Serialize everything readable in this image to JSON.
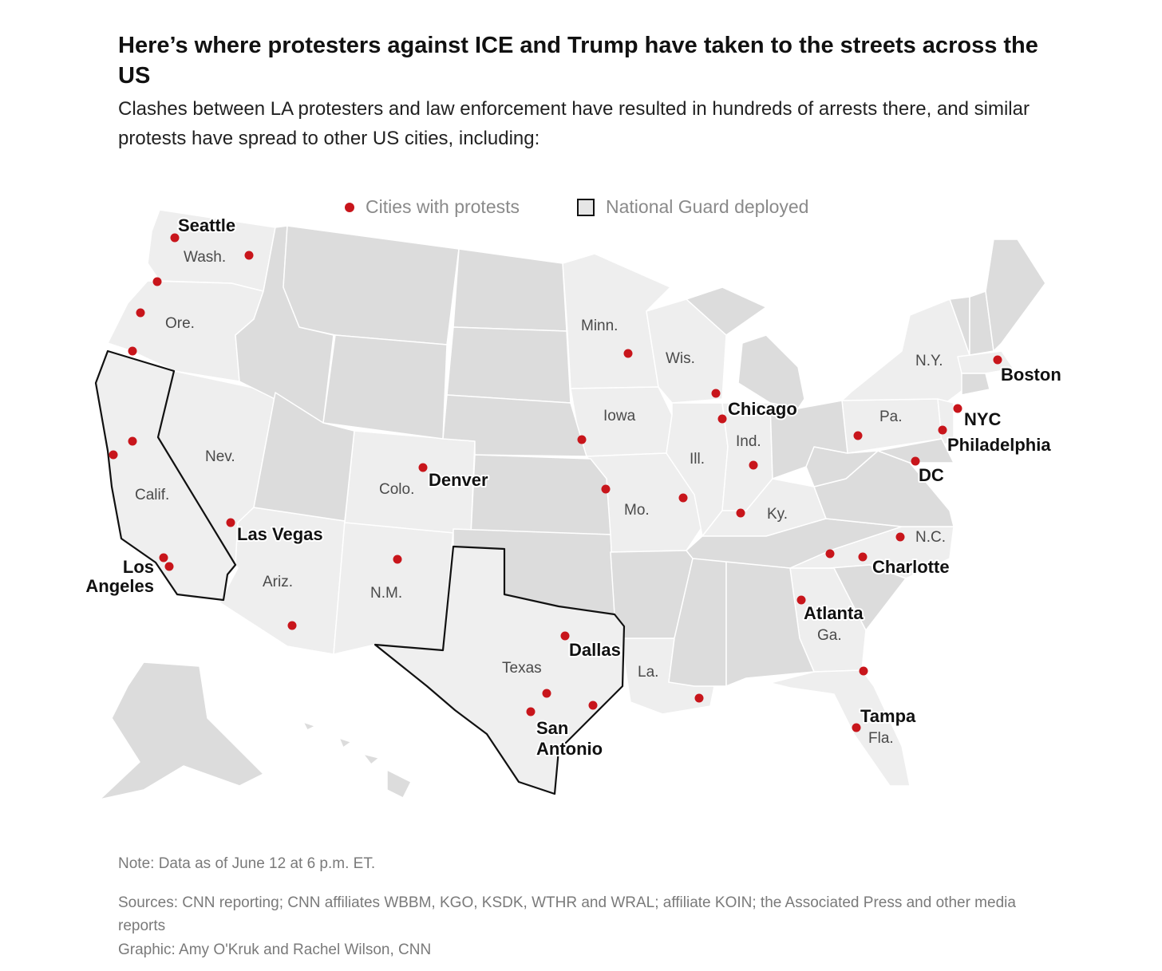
{
  "header": {
    "title": "Here’s where protesters against ICE and Trump have taken to the streets across the US",
    "subtitle": "Clashes between LA protesters and law enforcement have resulted in hundreds of arrests there, and similar protests have spread to other US cities, including:"
  },
  "legend": {
    "protests_label": "Cities with protests",
    "guard_label": "National Guard deployed"
  },
  "colors": {
    "protest_dot": "#c8151b",
    "guard_state_fill": "#efefef",
    "guard_state_border": "#111111",
    "state_fill_light": "#eeeeee",
    "state_fill_dark": "#dcdcdc",
    "state_border": "#ffffff"
  },
  "map": {
    "national_guard_states": [
      "Calif.",
      "Texas"
    ],
    "state_labels": [
      "Wash.",
      "Ore.",
      "Calif.",
      "Nev.",
      "Ariz.",
      "Colo.",
      "N.M.",
      "Texas",
      "Minn.",
      "Iowa",
      "Mo.",
      "Wis.",
      "Ill.",
      "Ind.",
      "Ky.",
      "La.",
      "Ga.",
      "Fla.",
      "N.C.",
      "Pa.",
      "N.Y."
    ],
    "city_labels": [
      "Seattle",
      "Los Angeles",
      "Las Vegas",
      "Denver",
      "Dallas",
      "San Antonio",
      "Chicago",
      "Atlanta",
      "Charlotte",
      "Tampa",
      "DC",
      "Philadelphia",
      "NYC",
      "Boston"
    ]
  },
  "footer": {
    "note": "Note: Data as of June 12 at 6 p.m. ET.",
    "sources": "Sources: CNN reporting; CNN affiliates WBBM, KGO, KSDK, WTHR and WRAL; affiliate KOIN; the Associated Press and other media reports",
    "credit": "Graphic: Amy O'Kruk and Rachel Wilson, CNN"
  }
}
